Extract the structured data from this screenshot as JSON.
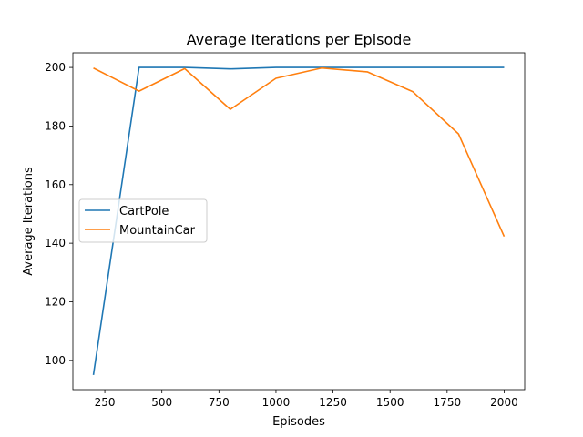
{
  "chart_data": {
    "type": "line",
    "title": "Average Iterations per Episode",
    "xlabel": "Episodes",
    "ylabel": "Average Iterations",
    "xlim": [
      110,
      2090
    ],
    "ylim": [
      90,
      205
    ],
    "xticks": [
      250,
      500,
      750,
      1000,
      1250,
      1500,
      1750,
      2000
    ],
    "yticks": [
      100,
      120,
      140,
      160,
      180,
      200
    ],
    "x": [
      200,
      400,
      600,
      800,
      1000,
      1200,
      1400,
      1600,
      1800,
      2000
    ],
    "series": [
      {
        "name": "CartPole",
        "color": "#1f77b4",
        "values": [
          95,
          200,
          200,
          199.5,
          200,
          200,
          200,
          200,
          200,
          200
        ]
      },
      {
        "name": "MountainCar",
        "color": "#ff7f0e",
        "values": [
          199.8,
          191.9,
          199.6,
          185.7,
          196.3,
          199.8,
          198.5,
          191.7,
          177.3,
          142.3
        ]
      }
    ],
    "legend": "center-left",
    "grid": false
  }
}
